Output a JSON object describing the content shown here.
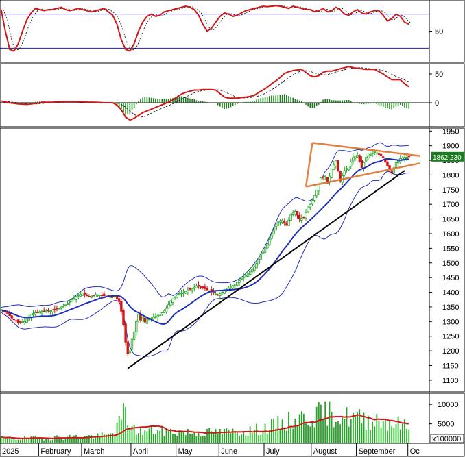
{
  "chart_data": {
    "type": "candlestick",
    "colors": {
      "up": "#21a821",
      "down": "#d01818",
      "ma20": "#1f2fb8",
      "bands": "#1f2fb8",
      "stoch_k": "#d01818",
      "stoch_d": "#000000",
      "macd": "#d01818",
      "signal": "#000000",
      "histogram": "#1a7a1a",
      "volume": "#21a821",
      "volume_ma": "#d01818",
      "trendline": "#000000",
      "triangle": "#e08040",
      "last_price_bg": "#1d7a22"
    },
    "x_axis": {
      "months": [
        "2025",
        "February",
        "March",
        "April",
        "May",
        "June",
        "July",
        "August",
        "September",
        "Oc"
      ]
    },
    "price_panel": {
      "ylim": [
        1060,
        1960
      ],
      "ticks": [
        1100,
        1150,
        1200,
        1250,
        1300,
        1350,
        1400,
        1450,
        1500,
        1550,
        1600,
        1650,
        1700,
        1750,
        1800,
        1850,
        1900,
        1950
      ],
      "last_price": "1862,230",
      "last_value": 1862.23,
      "close_anchors": [
        [
          0,
          1340
        ],
        [
          3,
          1328
        ],
        [
          5,
          1312
        ],
        [
          8,
          1296
        ],
        [
          11,
          1300
        ],
        [
          14,
          1325
        ],
        [
          17,
          1332
        ],
        [
          20,
          1336
        ],
        [
          23,
          1336
        ],
        [
          26,
          1344
        ],
        [
          29,
          1352
        ],
        [
          32,
          1368
        ],
        [
          35,
          1385
        ],
        [
          38,
          1398
        ],
        [
          41,
          1384
        ],
        [
          44,
          1392
        ],
        [
          47,
          1390
        ],
        [
          50,
          1384
        ],
        [
          53,
          1386
        ],
        [
          55,
          1368
        ],
        [
          56,
          1335
        ],
        [
          57,
          1290
        ],
        [
          58,
          1230
        ],
        [
          59,
          1190
        ],
        [
          60,
          1200
        ],
        [
          61,
          1240
        ],
        [
          62,
          1265
        ],
        [
          63,
          1300
        ],
        [
          64,
          1325
        ],
        [
          65,
          1305
        ],
        [
          66,
          1315
        ],
        [
          67,
          1298
        ],
        [
          68,
          1312
        ],
        [
          69,
          1308
        ],
        [
          71,
          1315
        ],
        [
          73,
          1320
        ],
        [
          75,
          1330
        ],
        [
          77,
          1345
        ],
        [
          79,
          1370
        ],
        [
          81,
          1385
        ],
        [
          83,
          1395
        ],
        [
          85,
          1398
        ],
        [
          87,
          1408
        ],
        [
          89,
          1412
        ],
        [
          91,
          1422
        ],
        [
          93,
          1418
        ],
        [
          95,
          1412
        ],
        [
          97,
          1405
        ],
        [
          99,
          1398
        ],
        [
          101,
          1390
        ],
        [
          103,
          1400
        ],
        [
          105,
          1410
        ],
        [
          107,
          1418
        ],
        [
          109,
          1428
        ],
        [
          111,
          1440
        ],
        [
          113,
          1452
        ],
        [
          115,
          1465
        ],
        [
          117,
          1478
        ],
        [
          119,
          1498
        ],
        [
          121,
          1528
        ],
        [
          123,
          1552
        ],
        [
          125,
          1580
        ],
        [
          127,
          1610
        ],
        [
          129,
          1640
        ],
        [
          131,
          1645
        ],
        [
          133,
          1628
        ],
        [
          135,
          1665
        ],
        [
          137,
          1676
        ],
        [
          139,
          1650
        ],
        [
          141,
          1655
        ],
        [
          143,
          1688
        ],
        [
          145,
          1712
        ],
        [
          147,
          1748
        ],
        [
          149,
          1790
        ],
        [
          151,
          1795
        ],
        [
          152,
          1772
        ],
        [
          154,
          1820
        ],
        [
          156,
          1848
        ],
        [
          158,
          1780
        ],
        [
          160,
          1815
        ],
        [
          162,
          1830
        ],
        [
          164,
          1860
        ],
        [
          166,
          1868
        ],
        [
          168,
          1825
        ],
        [
          170,
          1860
        ],
        [
          172,
          1870
        ],
        [
          174,
          1880
        ],
        [
          176,
          1872
        ],
        [
          178,
          1858
        ],
        [
          180,
          1830
        ],
        [
          182,
          1808
        ],
        [
          184,
          1842
        ],
        [
          186,
          1856
        ],
        [
          188,
          1860
        ],
        [
          190,
          1862
        ]
      ],
      "trendline": [
        [
          59,
          1140
        ],
        [
          188,
          1815
        ]
      ],
      "triangle": {
        "upper": [
          [
            145,
            1910
          ],
          [
            195,
            1865
          ]
        ],
        "lower": [
          [
            142,
            1760
          ],
          [
            195,
            1840
          ]
        ]
      }
    },
    "stochastic_panel": {
      "ticks": [
        50
      ],
      "reference_lines": [
        80,
        20
      ],
      "k_anchors": [
        [
          0,
          88
        ],
        [
          2,
          50
        ],
        [
          4,
          18
        ],
        [
          6,
          15
        ],
        [
          8,
          28
        ],
        [
          10,
          50
        ],
        [
          12,
          70
        ],
        [
          14,
          82
        ],
        [
          16,
          90
        ],
        [
          18,
          88
        ],
        [
          20,
          86
        ],
        [
          22,
          88
        ],
        [
          24,
          88
        ],
        [
          26,
          90
        ],
        [
          28,
          92
        ],
        [
          30,
          88
        ],
        [
          32,
          86
        ],
        [
          34,
          88
        ],
        [
          36,
          90
        ],
        [
          38,
          88
        ],
        [
          40,
          86
        ],
        [
          42,
          84
        ],
        [
          44,
          86
        ],
        [
          46,
          88
        ],
        [
          48,
          90
        ],
        [
          50,
          84
        ],
        [
          52,
          78
        ],
        [
          54,
          62
        ],
        [
          56,
          35
        ],
        [
          58,
          18
        ],
        [
          60,
          15
        ],
        [
          62,
          28
        ],
        [
          64,
          50
        ],
        [
          66,
          66
        ],
        [
          68,
          76
        ],
        [
          70,
          80
        ],
        [
          72,
          76
        ],
        [
          74,
          78
        ],
        [
          76,
          84
        ],
        [
          78,
          86
        ],
        [
          80,
          88
        ],
        [
          82,
          90
        ],
        [
          84,
          92
        ],
        [
          86,
          94
        ],
        [
          88,
          92
        ],
        [
          90,
          88
        ],
        [
          92,
          78
        ],
        [
          94,
          62
        ],
        [
          96,
          50
        ],
        [
          98,
          55
        ],
        [
          100,
          66
        ],
        [
          102,
          76
        ],
        [
          104,
          82
        ],
        [
          106,
          80
        ],
        [
          108,
          76
        ],
        [
          110,
          78
        ],
        [
          112,
          82
        ],
        [
          114,
          86
        ],
        [
          116,
          88
        ],
        [
          118,
          90
        ],
        [
          120,
          92
        ],
        [
          122,
          94
        ],
        [
          124,
          93
        ],
        [
          126,
          94
        ],
        [
          128,
          95
        ],
        [
          130,
          94
        ],
        [
          132,
          92
        ],
        [
          134,
          90
        ],
        [
          136,
          94
        ],
        [
          138,
          92
        ],
        [
          140,
          90
        ],
        [
          142,
          88
        ],
        [
          144,
          88
        ],
        [
          146,
          84
        ],
        [
          148,
          86
        ],
        [
          150,
          90
        ],
        [
          152,
          84
        ],
        [
          154,
          86
        ],
        [
          156,
          92
        ],
        [
          158,
          88
        ],
        [
          160,
          80
        ],
        [
          162,
          78
        ],
        [
          164,
          84
        ],
        [
          166,
          88
        ],
        [
          168,
          82
        ],
        [
          170,
          80
        ],
        [
          172,
          84
        ],
        [
          174,
          86
        ],
        [
          176,
          86
        ],
        [
          178,
          78
        ],
        [
          180,
          68
        ],
        [
          182,
          72
        ],
        [
          184,
          80
        ],
        [
          186,
          76
        ],
        [
          188,
          66
        ],
        [
          190,
          62
        ]
      ]
    },
    "macd_panel": {
      "ticks": [
        50,
        0
      ],
      "macd_anchors": [
        [
          0,
          3
        ],
        [
          4,
          0
        ],
        [
          8,
          -2
        ],
        [
          12,
          -3
        ],
        [
          16,
          -1
        ],
        [
          20,
          1
        ],
        [
          24,
          1
        ],
        [
          28,
          2
        ],
        [
          32,
          2
        ],
        [
          36,
          2
        ],
        [
          40,
          1
        ],
        [
          44,
          1
        ],
        [
          48,
          0
        ],
        [
          52,
          0
        ],
        [
          54,
          -4
        ],
        [
          56,
          -12
        ],
        [
          58,
          -25
        ],
        [
          60,
          -30
        ],
        [
          62,
          -27
        ],
        [
          64,
          -22
        ],
        [
          66,
          -17
        ],
        [
          68,
          -14
        ],
        [
          70,
          -11
        ],
        [
          72,
          -8
        ],
        [
          74,
          -5
        ],
        [
          76,
          -2
        ],
        [
          78,
          1
        ],
        [
          80,
          5
        ],
        [
          82,
          10
        ],
        [
          84,
          15
        ],
        [
          86,
          18
        ],
        [
          88,
          20
        ],
        [
          90,
          22
        ],
        [
          92,
          22
        ],
        [
          94,
          23
        ],
        [
          96,
          23
        ],
        [
          98,
          23
        ],
        [
          100,
          22
        ],
        [
          102,
          16
        ],
        [
          104,
          10
        ],
        [
          106,
          8
        ],
        [
          108,
          8
        ],
        [
          110,
          8
        ],
        [
          112,
          9
        ],
        [
          114,
          10
        ],
        [
          116,
          11
        ],
        [
          118,
          13
        ],
        [
          120,
          18
        ],
        [
          122,
          22
        ],
        [
          124,
          27
        ],
        [
          126,
          33
        ],
        [
          128,
          38
        ],
        [
          130,
          44
        ],
        [
          132,
          51
        ],
        [
          134,
          54
        ],
        [
          136,
          56
        ],
        [
          138,
          57
        ],
        [
          140,
          58
        ],
        [
          142,
          53
        ],
        [
          144,
          47
        ],
        [
          146,
          45
        ],
        [
          148,
          47
        ],
        [
          150,
          53
        ],
        [
          152,
          55
        ],
        [
          154,
          55
        ],
        [
          156,
          57
        ],
        [
          158,
          59
        ],
        [
          160,
          61
        ],
        [
          162,
          63
        ],
        [
          164,
          61
        ],
        [
          166,
          60
        ],
        [
          168,
          59
        ],
        [
          170,
          58
        ],
        [
          172,
          58
        ],
        [
          174,
          58
        ],
        [
          176,
          54
        ],
        [
          178,
          50
        ],
        [
          180,
          45
        ],
        [
          182,
          40
        ],
        [
          184,
          40
        ],
        [
          186,
          40
        ],
        [
          188,
          33
        ],
        [
          190,
          28
        ]
      ]
    },
    "volume_panel": {
      "ticks": [
        10000,
        5000
      ],
      "unit_label": "x100000",
      "volume_anchors": [
        [
          0,
          1200
        ],
        [
          10,
          1300
        ],
        [
          20,
          1400
        ],
        [
          30,
          1600
        ],
        [
          40,
          1800
        ],
        [
          50,
          2000
        ],
        [
          52,
          3000
        ],
        [
          55,
          5000
        ],
        [
          57,
          8000
        ],
        [
          59,
          6000
        ],
        [
          62,
          3500
        ],
        [
          66,
          3000
        ],
        [
          70,
          3200
        ],
        [
          80,
          3000
        ],
        [
          90,
          2800
        ],
        [
          100,
          2800
        ],
        [
          110,
          3000
        ],
        [
          120,
          3500
        ],
        [
          125,
          4200
        ],
        [
          130,
          5000
        ],
        [
          135,
          5800
        ],
        [
          140,
          6500
        ],
        [
          145,
          7000
        ],
        [
          150,
          7600
        ],
        [
          155,
          7500
        ],
        [
          160,
          6800
        ],
        [
          165,
          6500
        ],
        [
          170,
          6000
        ],
        [
          175,
          6200
        ],
        [
          180,
          5600
        ],
        [
          185,
          5000
        ],
        [
          190,
          4200
        ]
      ]
    }
  }
}
